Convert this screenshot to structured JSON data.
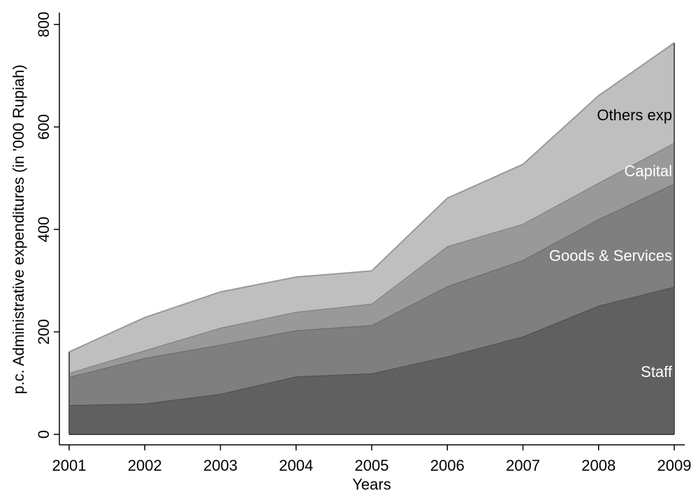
{
  "chart_data": {
    "type": "stacked_area",
    "x": [
      2001,
      2002,
      2003,
      2004,
      2005,
      2006,
      2007,
      2008,
      2009
    ],
    "xlim": [
      2001,
      2009
    ],
    "xticks": [
      2001,
      2002,
      2003,
      2004,
      2005,
      2006,
      2007,
      2008,
      2009
    ],
    "ylim": [
      0,
      800
    ],
    "yticks": [
      0,
      200,
      400,
      600,
      800
    ],
    "x_label": "Years",
    "y_label": "p.c. Administrative expenditures (in '000 Rupiah)",
    "series": [
      {
        "name": "Staff",
        "color": "#606060",
        "values": [
          57,
          60,
          79,
          113,
          119,
          152,
          191,
          251,
          288
        ]
      },
      {
        "name": "Goods & Services",
        "color": "#7f7f7f",
        "values": [
          55,
          89,
          96,
          90,
          94,
          137,
          149,
          169,
          201
        ]
      },
      {
        "name": "Capital",
        "color": "#999999",
        "values": [
          8,
          15,
          33,
          36,
          42,
          78,
          71,
          71,
          80
        ]
      },
      {
        "name": "Others exp",
        "color": "#bfbfbf",
        "values": [
          41,
          64,
          70,
          68,
          64,
          94,
          116,
          170,
          195
        ]
      }
    ]
  }
}
